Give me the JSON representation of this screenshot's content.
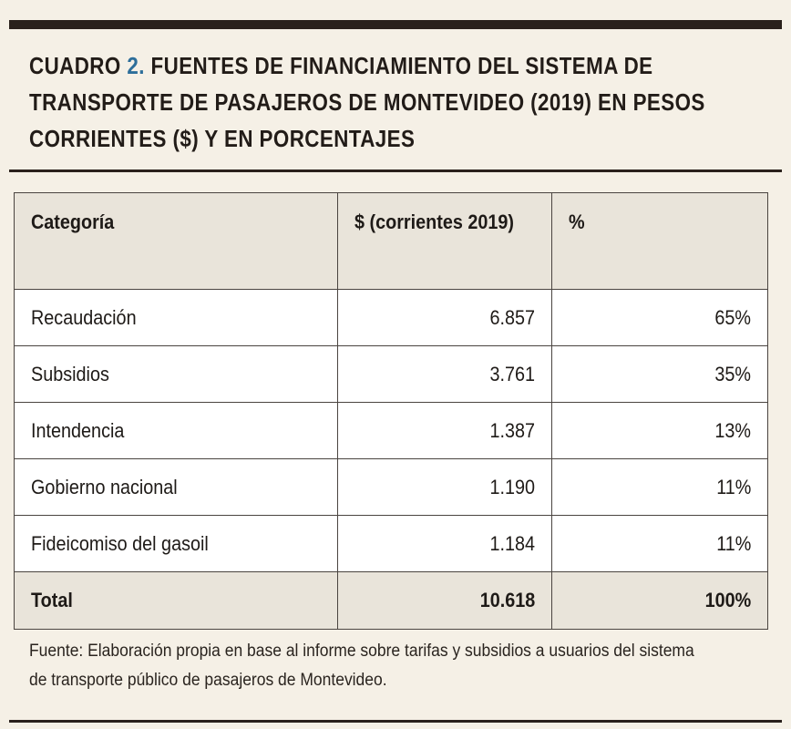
{
  "title": {
    "prefix": "CUADRO",
    "number": "2.",
    "line1": "FUENTES DE FINANCIAMIENTO DEL SISTEMA DE",
    "line2": "TRANSPORTE DE PASAJEROS DE MONTEVIDEO (2019) EN PESOS",
    "line3": "CORRIENTES ($) Y EN PORCENTAJES"
  },
  "table": {
    "headers": [
      "Categoría",
      "$ (corrientes 2019)",
      "%"
    ],
    "rows": [
      {
        "category": "Recaudación",
        "amount": "6.857",
        "percent": "65%"
      },
      {
        "category": "Subsidios",
        "amount": "3.761",
        "percent": "35%"
      },
      {
        "category": "Intendencia",
        "amount": "1.387",
        "percent": "13%"
      },
      {
        "category": "Gobierno nacional",
        "amount": "1.190",
        "percent": "11%"
      },
      {
        "category": "Fideicomiso del gasoil",
        "amount": "1.184",
        "percent": "11%"
      }
    ],
    "total": {
      "category": "Total",
      "amount": "10.618",
      "percent": "100%"
    }
  },
  "source": "Fuente: Elaboración propia en base al informe sobre tarifas y subsidios a usuarios del sistema de transporte público de pasajeros de Montevideo.",
  "colors": {
    "background": "#f5f0e6",
    "rule": "#2a211c",
    "accent": "#2d6e9a",
    "header_fill": "#e9e4da"
  }
}
